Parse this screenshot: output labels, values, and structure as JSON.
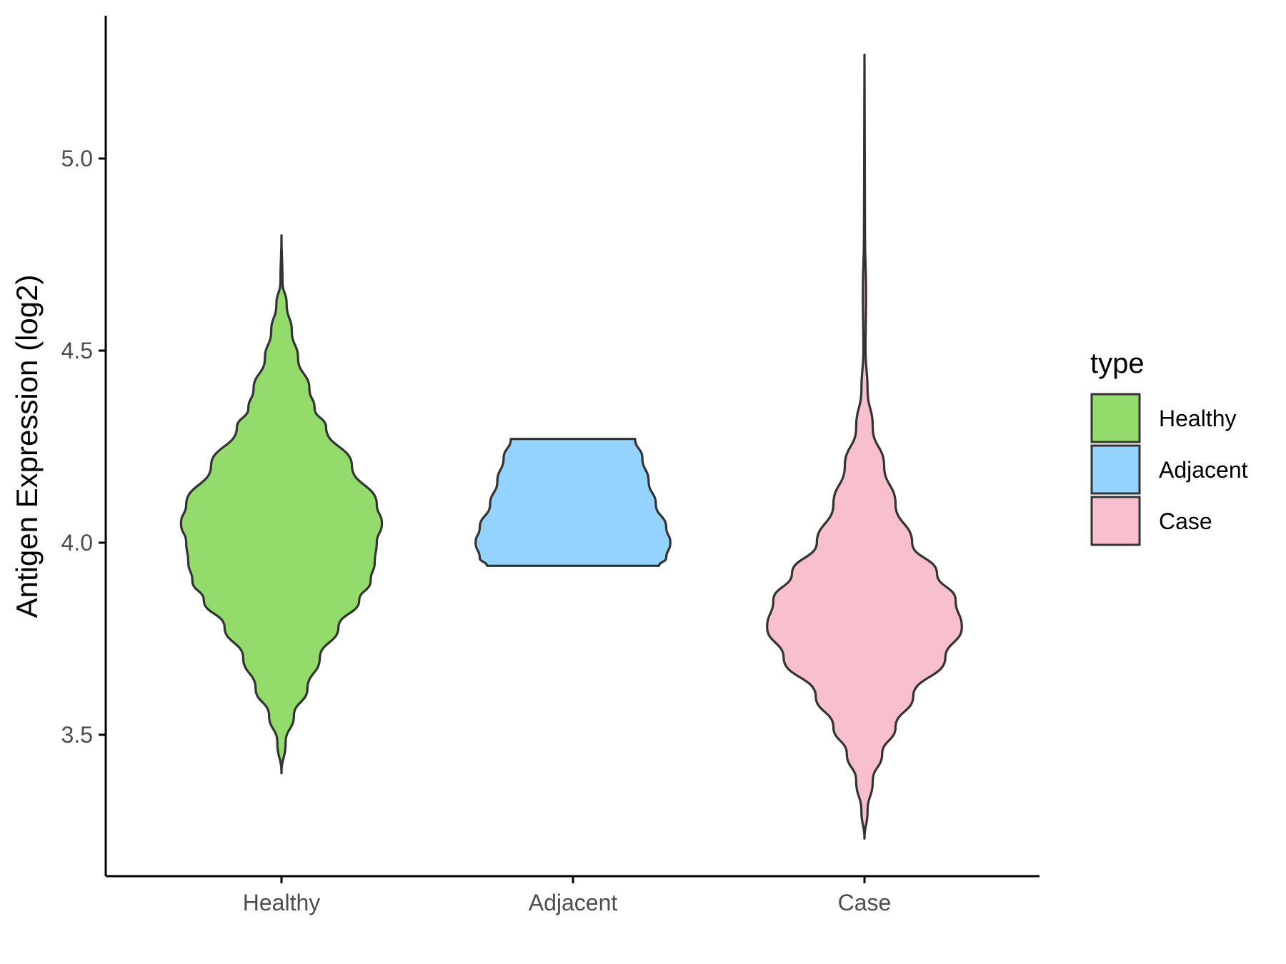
{
  "chart_data": {
    "type": "violin",
    "title": "",
    "xlabel": "",
    "ylabel": "Antigen Expression (log2)",
    "ylim": [
      3.15,
      5.35
    ],
    "yticks": [
      3.5,
      4.0,
      4.5,
      5.0
    ],
    "ytick_labels": [
      "3.5",
      "4.0",
      "4.5",
      "5.0"
    ],
    "categories": [
      "Healthy",
      "Adjacent",
      "Case"
    ],
    "legend": {
      "title": "type",
      "position": "right",
      "entries": [
        "Healthy",
        "Adjacent",
        "Case"
      ]
    },
    "grid": false,
    "colors": {
      "Healthy": "#93dc6c",
      "Adjacent": "#93d3fd",
      "Case": "#f7c0cc",
      "outline": "#333333",
      "axis": "#000000",
      "tick_label": "#4d4d4d"
    },
    "series": [
      {
        "name": "Healthy",
        "ymin": 3.4,
        "ymax": 4.8,
        "density": [
          [
            3.4,
            0.0
          ],
          [
            3.48,
            0.04
          ],
          [
            3.55,
            0.12
          ],
          [
            3.62,
            0.25
          ],
          [
            3.7,
            0.37
          ],
          [
            3.78,
            0.55
          ],
          [
            3.85,
            0.75
          ],
          [
            3.9,
            0.86
          ],
          [
            3.95,
            0.9
          ],
          [
            4.0,
            0.92
          ],
          [
            4.05,
            0.97
          ],
          [
            4.1,
            0.92
          ],
          [
            4.2,
            0.68
          ],
          [
            4.3,
            0.43
          ],
          [
            4.35,
            0.32
          ],
          [
            4.4,
            0.27
          ],
          [
            4.48,
            0.16
          ],
          [
            4.55,
            0.1
          ],
          [
            4.62,
            0.05
          ],
          [
            4.68,
            0.01
          ],
          [
            4.8,
            0.0
          ]
        ]
      },
      {
        "name": "Adjacent",
        "ymin": 3.94,
        "ymax": 4.27,
        "density": [
          [
            3.94,
            0.83
          ],
          [
            3.96,
            0.9
          ],
          [
            4.0,
            0.94
          ],
          [
            4.04,
            0.9
          ],
          [
            4.1,
            0.8
          ],
          [
            4.16,
            0.73
          ],
          [
            4.22,
            0.67
          ],
          [
            4.27,
            0.6
          ]
        ]
      },
      {
        "name": "Case",
        "ymin": 3.23,
        "ymax": 5.27,
        "density": [
          [
            3.23,
            0.0
          ],
          [
            3.3,
            0.03
          ],
          [
            3.38,
            0.08
          ],
          [
            3.45,
            0.17
          ],
          [
            3.52,
            0.3
          ],
          [
            3.6,
            0.47
          ],
          [
            3.7,
            0.78
          ],
          [
            3.78,
            0.94
          ],
          [
            3.85,
            0.88
          ],
          [
            3.92,
            0.7
          ],
          [
            4.0,
            0.46
          ],
          [
            4.1,
            0.3
          ],
          [
            4.2,
            0.19
          ],
          [
            4.3,
            0.08
          ],
          [
            4.4,
            0.03
          ],
          [
            4.5,
            0.01
          ],
          [
            4.65,
            0.015
          ],
          [
            4.8,
            0.005
          ],
          [
            5.0,
            0.003
          ],
          [
            5.27,
            0.0
          ]
        ]
      }
    ]
  }
}
